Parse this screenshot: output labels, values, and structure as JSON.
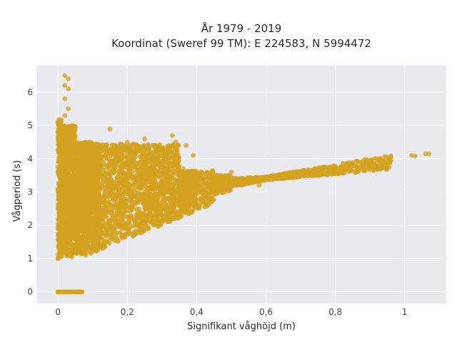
{
  "chart_data": {
    "type": "scatter",
    "title_line1": "År 1979 - 2019",
    "title_line2": "Koordinat (Sweref 99 TM): E 224583, N 5994472",
    "xlabel": "Signifikant våghöjd (m)",
    "ylabel": "Vågperiod (s)",
    "xlim": [
      -0.06,
      1.12
    ],
    "ylim": [
      -0.35,
      6.8
    ],
    "xticks": [
      0,
      0.2,
      0.4,
      0.6,
      0.8,
      1.0
    ],
    "xtick_labels": [
      "0",
      "0,2",
      "0,4",
      "0,6",
      "0,8",
      "1"
    ],
    "yticks": [
      0,
      1,
      2,
      3,
      4,
      5,
      6
    ],
    "ytick_labels": [
      "0",
      "1",
      "2",
      "3",
      "4",
      "5",
      "6"
    ],
    "grid": true,
    "background": "#e9e9f0",
    "marker_color": "#d4a21f",
    "series": [
      {
        "points": [
          [
            0.0,
            0.0
          ],
          [
            0.02,
            0.0
          ],
          [
            0.04,
            0.0
          ],
          [
            0.06,
            0.0
          ],
          [
            0.07,
            0.0
          ],
          [
            0.02,
            6.5
          ],
          [
            0.03,
            6.4
          ],
          [
            0.02,
            6.2
          ],
          [
            0.03,
            6.1
          ],
          [
            0.02,
            5.8
          ],
          [
            0.03,
            5.5
          ],
          [
            0.02,
            5.3
          ],
          [
            0.04,
            5.0
          ],
          [
            0.0,
            5.1
          ],
          [
            0.01,
            4.8
          ],
          [
            0.05,
            4.7
          ],
          [
            0.09,
            4.5
          ],
          [
            0.15,
            4.9
          ],
          [
            0.09,
            4.3
          ],
          [
            0.2,
            4.5
          ],
          [
            0.25,
            4.6
          ],
          [
            0.28,
            4.4
          ],
          [
            0.33,
            4.7
          ],
          [
            0.34,
            4.5
          ],
          [
            0.37,
            4.4
          ],
          [
            0.39,
            4.1
          ],
          [
            0.3,
            3.9
          ],
          [
            0.36,
            3.7
          ],
          [
            0.4,
            3.5
          ],
          [
            0.43,
            3.6
          ],
          [
            0.47,
            3.5
          ],
          [
            0.5,
            3.6
          ],
          [
            0.52,
            3.4
          ],
          [
            0.25,
            3.3
          ],
          [
            0.3,
            3.0
          ],
          [
            0.35,
            2.9
          ],
          [
            0.25,
            2.7
          ],
          [
            0.27,
            2.5
          ],
          [
            0.3,
            2.3
          ],
          [
            0.22,
            2.2
          ],
          [
            0.2,
            2.05
          ],
          [
            0.14,
            1.75
          ],
          [
            0.1,
            1.5
          ],
          [
            0.13,
            1.3
          ],
          [
            0.07,
            1.2
          ],
          [
            0.0,
            1.0
          ],
          [
            0.04,
            1.05
          ],
          [
            0.08,
            1.1
          ],
          [
            0.55,
            3.3
          ],
          [
            0.6,
            3.4
          ],
          [
            0.62,
            3.5
          ],
          [
            0.68,
            3.55
          ],
          [
            0.72,
            3.6
          ],
          [
            0.76,
            3.7
          ],
          [
            0.8,
            3.75
          ],
          [
            0.85,
            3.8
          ],
          [
            0.88,
            3.85
          ],
          [
            0.92,
            3.95
          ],
          [
            0.94,
            3.9
          ],
          [
            0.96,
            4.05
          ],
          [
            1.02,
            4.1
          ],
          [
            1.03,
            4.08
          ],
          [
            1.06,
            4.15
          ],
          [
            1.07,
            4.15
          ],
          [
            0.1,
            3.0
          ],
          [
            0.15,
            3.2
          ],
          [
            0.18,
            2.8
          ],
          [
            0.05,
            2.5
          ],
          [
            0.1,
            2.2
          ],
          [
            0.12,
            3.8
          ],
          [
            0.18,
            3.6
          ],
          [
            0.22,
            3.8
          ],
          [
            0.45,
            3.2
          ],
          [
            0.48,
            3.0
          ],
          [
            0.58,
            3.2
          ],
          [
            0.65,
            3.4
          ],
          [
            0.7,
            3.5
          ],
          [
            0.75,
            3.6
          ],
          [
            0.8,
            3.65
          ],
          [
            0.84,
            3.72
          ],
          [
            0.4,
            3.0
          ],
          [
            0.42,
            2.9
          ],
          [
            0.38,
            2.8
          ],
          [
            0.3,
            2.6
          ]
        ]
      }
    ]
  }
}
